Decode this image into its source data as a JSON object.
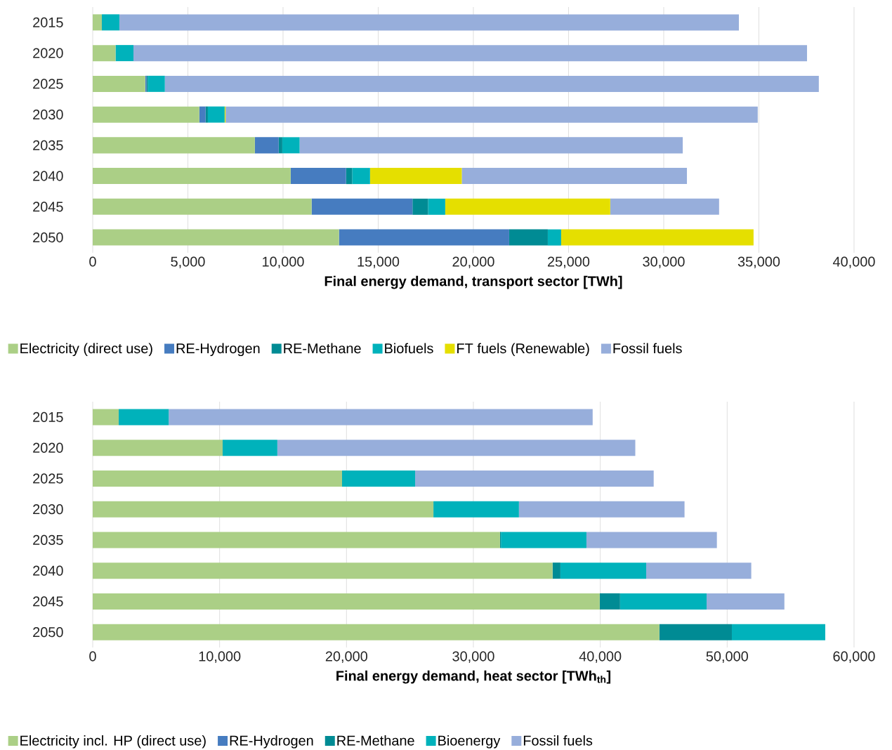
{
  "chart_data": [
    {
      "type": "bar",
      "orientation": "horizontal",
      "stacked": true,
      "xlabel": "Final energy demand, transport sector [TWh]",
      "categories": [
        "2015",
        "2020",
        "2025",
        "2030",
        "2035",
        "2040",
        "2045",
        "2050"
      ],
      "xlim": [
        0,
        40000
      ],
      "xticks": [
        0,
        {
          "value": 5000,
          "label": "5,000"
        },
        {
          "value": 10000,
          "label": "10,000"
        },
        {
          "value": 15000,
          "label": "15,000"
        },
        {
          "value": 20000,
          "label": "20,000"
        },
        {
          "value": 25000,
          "label": "25,000"
        },
        {
          "value": 30000,
          "label": "30,000"
        },
        {
          "value": 35000,
          "label": "35,000"
        },
        {
          "value": 40000,
          "label": "40,000"
        }
      ],
      "grid": "x",
      "legend": "bottom",
      "series": [
        {
          "name": "Electricity (direct use)",
          "color": "#abcf86",
          "values": [
            480,
            1200,
            2760,
            5600,
            8520,
            10400,
            11500,
            12940
          ]
        },
        {
          "name": "RE-Hydrogen",
          "color": "#467cc0",
          "values": [
            0,
            0,
            70,
            330,
            1250,
            2910,
            5300,
            8940
          ]
        },
        {
          "name": "RE-Methane",
          "color": "#008b94",
          "values": [
            0,
            0,
            70,
            120,
            190,
            320,
            820,
            2030
          ]
        },
        {
          "name": "Biofuels",
          "color": "#00b2bb",
          "values": [
            920,
            940,
            890,
            880,
            910,
            940,
            900,
            700
          ]
        },
        {
          "name": "FT fuels (Renewable)",
          "color": "#e5df00",
          "values": [
            0,
            0,
            0,
            50,
            0,
            4820,
            8670,
            10110
          ]
        },
        {
          "name": "Fossil fuels",
          "color": "#97aedb",
          "values": [
            32550,
            35390,
            34360,
            27960,
            20130,
            11830,
            5720,
            0
          ]
        }
      ]
    },
    {
      "type": "bar",
      "orientation": "horizontal",
      "stacked": true,
      "xlabel": "Final energy demand, heat sector [TWh$_{th}$]",
      "categories": [
        "2015",
        "2020",
        "2025",
        "2030",
        "2035",
        "2040",
        "2045",
        "2050"
      ],
      "xlim": [
        0,
        60000
      ],
      "xticks": [
        0,
        {
          "value": 10000,
          "label": "10,000"
        },
        {
          "value": 20000,
          "label": "20,000"
        },
        {
          "value": 30000,
          "label": "30,000"
        },
        {
          "value": 40000,
          "label": "40,000"
        },
        {
          "value": 50000,
          "label": "50,000"
        },
        {
          "value": 60000,
          "label": "60,000"
        }
      ],
      "grid": "x",
      "legend": "bottom",
      "series": [
        {
          "name": "Electricity incl. HP (direct use)",
          "color": "#abcf86",
          "values": [
            2050,
            10240,
            19650,
            26850,
            32100,
            36240,
            39960,
            44660
          ]
        },
        {
          "name": "RE-Hydrogen",
          "color": "#467cc0",
          "values": [
            0,
            0,
            0,
            0,
            0,
            0,
            0,
            0
          ]
        },
        {
          "name": "RE-Methane",
          "color": "#008b94",
          "values": [
            0,
            0,
            0,
            0,
            70,
            620,
            1600,
            5710
          ]
        },
        {
          "name": "Bioenergy",
          "color": "#00b2bb",
          "values": [
            3940,
            4310,
            5760,
            6740,
            6740,
            6760,
            6820,
            7360
          ]
        },
        {
          "name": "Fossil fuels",
          "color": "#97aedb",
          "values": [
            33410,
            28210,
            18800,
            13050,
            10280,
            8280,
            6130,
            0
          ]
        }
      ]
    }
  ]
}
